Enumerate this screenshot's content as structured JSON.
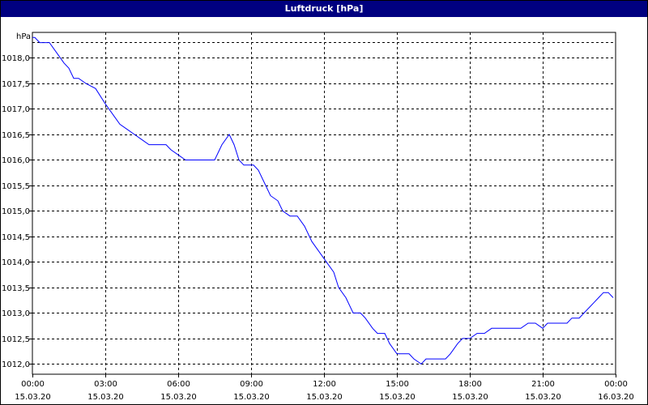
{
  "window": {
    "title": "Luftdruck [hPa]"
  },
  "chart_data": {
    "type": "line",
    "title": "Luftdruck [hPa]",
    "ylabel": "hPa",
    "xlabel": "",
    "ylim": [
      1011.8,
      1018.5
    ],
    "xlim": [
      0,
      24
    ],
    "grid": true,
    "line_color": "#0000ff",
    "y_ticks": [
      {
        "value": 1012.0,
        "label": "1012,0"
      },
      {
        "value": 1012.5,
        "label": "1012,5"
      },
      {
        "value": 1013.0,
        "label": "1013,0"
      },
      {
        "value": 1013.5,
        "label": "1013,5"
      },
      {
        "value": 1014.0,
        "label": "1014,0"
      },
      {
        "value": 1014.5,
        "label": "1014,5"
      },
      {
        "value": 1015.0,
        "label": "1015,0"
      },
      {
        "value": 1015.5,
        "label": "1015,5"
      },
      {
        "value": 1016.0,
        "label": "1016,0"
      },
      {
        "value": 1016.5,
        "label": "1016,5"
      },
      {
        "value": 1017.0,
        "label": "1017,0"
      },
      {
        "value": 1017.5,
        "label": "1017,5"
      },
      {
        "value": 1018.0,
        "label": "1018,0"
      }
    ],
    "x_ticks": [
      {
        "hour": 0,
        "time": "00:00",
        "date": "15.03.20"
      },
      {
        "hour": 3,
        "time": "03:00",
        "date": "15.03.20"
      },
      {
        "hour": 6,
        "time": "06:00",
        "date": "15.03.20"
      },
      {
        "hour": 9,
        "time": "09:00",
        "date": "15.03.20"
      },
      {
        "hour": 12,
        "time": "12:00",
        "date": "15.03.20"
      },
      {
        "hour": 15,
        "time": "15:00",
        "date": "15.03.20"
      },
      {
        "hour": 18,
        "time": "18:00",
        "date": "15.03.20"
      },
      {
        "hour": 21,
        "time": "21:00",
        "date": "15.03.20"
      },
      {
        "hour": 24,
        "time": "00:00",
        "date": "16.03.20"
      }
    ],
    "series": [
      {
        "x": [
          0,
          0.1,
          0.3,
          0.7,
          1.0,
          1.3,
          1.5,
          1.7,
          1.9,
          2.2,
          2.6,
          3.0,
          3.3,
          3.6,
          3.9,
          4.2,
          4.5,
          4.8,
          5.1,
          5.5,
          5.7,
          6.0,
          6.3,
          6.5,
          7.0,
          7.5,
          7.8,
          8.1,
          8.3,
          8.5,
          8.7,
          9.0,
          9.1,
          9.3,
          9.6,
          9.8,
          10.1,
          10.3,
          10.6,
          10.9,
          11.2,
          11.5,
          11.8,
          12.1,
          12.4,
          12.6,
          12.9,
          13.2,
          13.5,
          13.7,
          14.0,
          14.2,
          14.5,
          14.7,
          15.0,
          15.2,
          15.5,
          15.7,
          16.0,
          16.2,
          16.5,
          16.7,
          17.0,
          17.2,
          17.5,
          17.7,
          18.0,
          18.3,
          18.6,
          18.9,
          19.2,
          19.5,
          19.8,
          20.1,
          20.4,
          20.7,
          21.0,
          21.2,
          21.3,
          21.5,
          21.8,
          22.0,
          22.2,
          22.5,
          22.7,
          22.9,
          23.1,
          23.3,
          23.5,
          23.7,
          23.9
        ],
        "y": [
          1018.4,
          1018.4,
          1018.3,
          1018.3,
          1018.1,
          1017.9,
          1017.8,
          1017.6,
          1017.6,
          1017.5,
          1017.4,
          1017.1,
          1016.9,
          1016.7,
          1016.6,
          1016.5,
          1016.4,
          1016.3,
          1016.3,
          1016.3,
          1016.2,
          1016.1,
          1016.0,
          1016.0,
          1016.0,
          1016.0,
          1016.3,
          1016.5,
          1016.3,
          1016.0,
          1015.9,
          1015.9,
          1015.9,
          1015.8,
          1015.5,
          1015.3,
          1015.2,
          1015.0,
          1014.9,
          1014.9,
          1014.7,
          1014.4,
          1014.2,
          1014.0,
          1013.8,
          1013.5,
          1013.3,
          1013.0,
          1013.0,
          1012.9,
          1012.7,
          1012.6,
          1012.6,
          1012.4,
          1012.2,
          1012.2,
          1012.2,
          1012.1,
          1012.0,
          1012.1,
          1012.1,
          1012.1,
          1012.1,
          1012.2,
          1012.4,
          1012.5,
          1012.5,
          1012.6,
          1012.6,
          1012.7,
          1012.7,
          1012.7,
          1012.7,
          1012.7,
          1012.8,
          1012.8,
          1012.7,
          1012.8,
          1012.8,
          1012.8,
          1012.8,
          1012.8,
          1012.9,
          1012.9,
          1013.0,
          1013.1,
          1013.2,
          1013.3,
          1013.4,
          1013.4,
          1013.3
        ]
      }
    ]
  }
}
